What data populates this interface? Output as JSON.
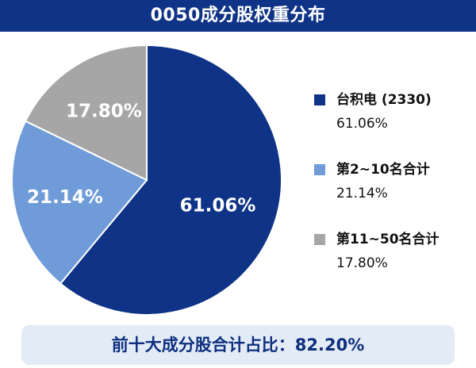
{
  "header": {
    "title": "0050成分股权重分布"
  },
  "chart_data": {
    "type": "pie",
    "title": "0050成分股权重分布",
    "slices": [
      {
        "name": "台积电 (2330)",
        "value": 61.06,
        "label": "61.06%",
        "color": "#0f3386",
        "label_color": "#ffffff"
      },
      {
        "name": "第2~10名合计",
        "value": 21.14,
        "label": "21.14%",
        "color": "#6f9bd9",
        "label_color": "#ffffff"
      },
      {
        "name": "第11~50名合计",
        "value": 17.8,
        "label": "17.80%",
        "color": "#a6a6a6",
        "label_color": "#ffffff"
      }
    ],
    "start_angle_deg": 0,
    "direction": "clockwise",
    "legend_position": "right"
  },
  "summary": {
    "text": "前十大成分股合计占比：82.20%"
  },
  "colors": {
    "title_background": "#0f3386",
    "summary_background": "#e3ebf7",
    "summary_text": "#0d2f7e"
  }
}
